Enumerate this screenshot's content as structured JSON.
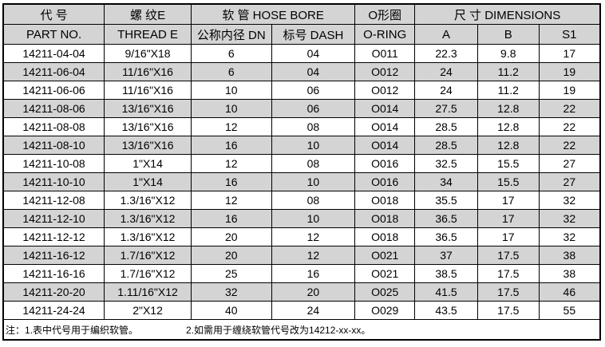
{
  "header": {
    "part_cn": "代 号",
    "thread_cn": "螺 纹E",
    "hose_bore": "软 管 HOSE BORE",
    "oring_cn": "O形圈",
    "dimensions": "尺 寸 DIMENSIONS",
    "part_no": "PART NO.",
    "thread_e": "THREAD E",
    "dn": "公称内径 DN",
    "dash": "标号 DASH",
    "oring": "O-RING",
    "a": "A",
    "b": "B",
    "s1": "S1"
  },
  "rows": [
    [
      "14211-04-04",
      "9/16\"X18",
      "6",
      "04",
      "O011",
      "22.3",
      "9.8",
      "17"
    ],
    [
      "14211-06-04",
      "11/16\"X16",
      "6",
      "04",
      "O012",
      "24",
      "11.2",
      "19"
    ],
    [
      "14211-06-06",
      "11/16\"X16",
      "10",
      "06",
      "O012",
      "24",
      "11.2",
      "19"
    ],
    [
      "14211-08-06",
      "13/16\"X16",
      "10",
      "06",
      "O014",
      "27.5",
      "12.8",
      "22"
    ],
    [
      "14211-08-08",
      "13/16\"X16",
      "12",
      "08",
      "O014",
      "28.5",
      "12.8",
      "22"
    ],
    [
      "14211-08-10",
      "13/16\"X16",
      "16",
      "10",
      "O014",
      "28.5",
      "12.8",
      "22"
    ],
    [
      "14211-10-08",
      "1\"X14",
      "12",
      "08",
      "O016",
      "32.5",
      "15.5",
      "27"
    ],
    [
      "14211-10-10",
      "1\"X14",
      "16",
      "10",
      "O016",
      "34",
      "15.5",
      "27"
    ],
    [
      "14211-12-08",
      "1.3/16\"X12",
      "12",
      "08",
      "O018",
      "35.5",
      "17",
      "32"
    ],
    [
      "14211-12-10",
      "1.3/16\"X12",
      "16",
      "10",
      "O018",
      "36.5",
      "17",
      "32"
    ],
    [
      "14211-12-12",
      "1.3/16\"X12",
      "20",
      "12",
      "O018",
      "36.5",
      "17",
      "32"
    ],
    [
      "14211-16-12",
      "1.7/16\"X12",
      "20",
      "12",
      "O021",
      "37",
      "17.5",
      "38"
    ],
    [
      "14211-16-16",
      "1.7/16\"X12",
      "25",
      "16",
      "O021",
      "38.5",
      "17.5",
      "38"
    ],
    [
      "14211-20-20",
      "1.11/16\"X12",
      "32",
      "20",
      "O025",
      "41.5",
      "17.5",
      "46"
    ],
    [
      "14211-24-24",
      "2\"X12",
      "40",
      "24",
      "O029",
      "43.5",
      "17.5",
      "55"
    ]
  ],
  "note": {
    "label": "注：",
    "item1": "1.表中代号用于编织软管。",
    "item2": "2.如需用于缠绕软管代号改为14212-xx-xx。"
  },
  "colors": {
    "header_bg": "#d4d4d4",
    "shade_bg": "#d4d4d4"
  }
}
